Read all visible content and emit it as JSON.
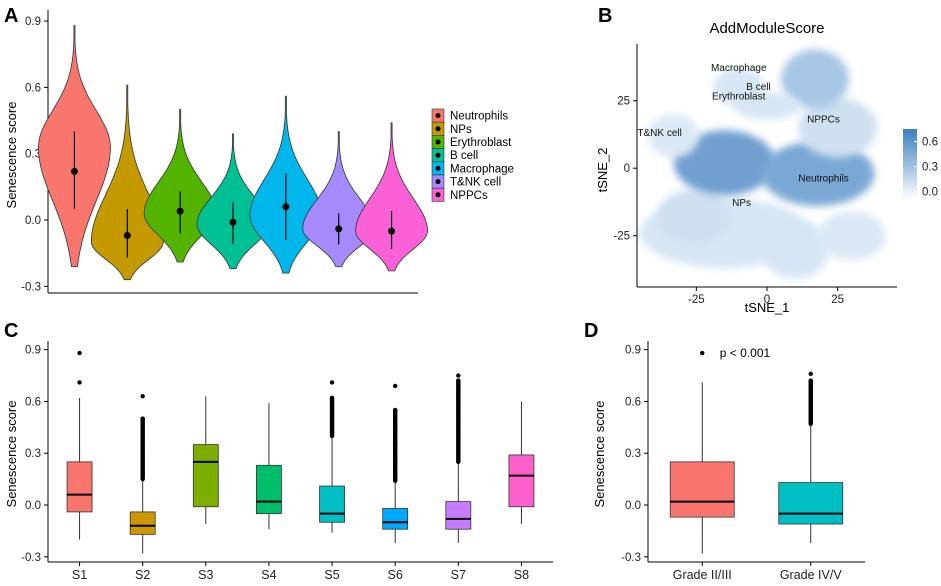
{
  "panels": {
    "A": {
      "letter": "A",
      "type": "violin",
      "ylabel": "Senescence score",
      "ylim": [
        -0.33,
        0.95
      ],
      "yticks": [
        -0.3,
        0.0,
        0.3,
        0.6,
        0.9
      ],
      "ytick_labels": [
        "-0.3",
        "0.0",
        "0.3",
        "0.6",
        "0.9"
      ],
      "legend_title": "",
      "legend_position": "right",
      "categories": [
        "Neutrophils",
        "NPs",
        "Erythroblast",
        "B cell",
        "Macrophage",
        "T&NK cell",
        "NPPCs"
      ],
      "colors": [
        "#F8766D",
        "#C49A00",
        "#53B400",
        "#00C094",
        "#00B6EB",
        "#A58AFF",
        "#FB61D7"
      ],
      "violins": [
        {
          "name": "Neutrophils",
          "min": -0.21,
          "max": 0.88,
          "mean": 0.22,
          "q1": 0.05,
          "q3": 0.4,
          "peak": 0.33
        },
        {
          "name": "NPs",
          "min": -0.27,
          "max": 0.61,
          "mean": -0.07,
          "q1": -0.17,
          "q3": 0.05,
          "peak": -0.1
        },
        {
          "name": "Erythroblast",
          "min": -0.19,
          "max": 0.5,
          "mean": 0.04,
          "q1": -0.06,
          "q3": 0.13,
          "peak": 0.03
        },
        {
          "name": "B cell",
          "min": -0.22,
          "max": 0.39,
          "mean": -0.01,
          "q1": -0.11,
          "q3": 0.08,
          "peak": -0.02
        },
        {
          "name": "Macrophage",
          "min": -0.24,
          "max": 0.56,
          "mean": 0.06,
          "q1": -0.09,
          "q3": 0.21,
          "peak": 0.02
        },
        {
          "name": "T&NK cell",
          "min": -0.21,
          "max": 0.4,
          "mean": -0.04,
          "q1": -0.11,
          "q3": 0.03,
          "peak": -0.04
        },
        {
          "name": "NPPCs",
          "min": -0.23,
          "max": 0.44,
          "mean": -0.05,
          "q1": -0.13,
          "q3": 0.04,
          "peak": -0.05
        }
      ]
    },
    "B": {
      "letter": "B",
      "type": "scatter",
      "title": "AddModuleScore",
      "xlabel": "tSNE_1",
      "ylabel": "tSNE_2",
      "xlim": [
        -46,
        46
      ],
      "ylim": [
        -44,
        46
      ],
      "xticks": [
        -25,
        0,
        25
      ],
      "xtick_labels": [
        "-25",
        "0",
        "25"
      ],
      "yticks": [
        -25,
        0,
        25
      ],
      "ytick_labels": [
        "-25",
        "0",
        "25"
      ],
      "colorbar": {
        "min": -0.1,
        "max": 0.75,
        "ticks": [
          0.0,
          0.3,
          0.6
        ],
        "tick_labels": [
          "0.0",
          "0.3",
          "0.6"
        ],
        "low_color": "#FFFFFF",
        "high_color": "#3A7FC0"
      },
      "cluster_labels": [
        {
          "text": "Macrophage",
          "x": -10,
          "y": 36
        },
        {
          "text": "B cell",
          "x": -3,
          "y": 29
        },
        {
          "text": "Erythroblast",
          "x": -10,
          "y": 25.5
        },
        {
          "text": "NPPCs",
          "x": 20,
          "y": 17
        },
        {
          "text": "T&NK cell",
          "x": -38,
          "y": 12
        },
        {
          "text": "Neutrophils",
          "x": 20,
          "y": -5
        },
        {
          "text": "NPs",
          "x": -9,
          "y": -14
        }
      ]
    },
    "C": {
      "letter": "C",
      "type": "box",
      "ylabel": "Senescence score",
      "ylim": [
        -0.33,
        0.95
      ],
      "yticks": [
        -0.3,
        0.0,
        0.3,
        0.6,
        0.9
      ],
      "ytick_labels": [
        "-0.3",
        "0.0",
        "0.3",
        "0.6",
        "0.9"
      ],
      "categories": [
        "S1",
        "S2",
        "S3",
        "S4",
        "S5",
        "S6",
        "S7",
        "S8"
      ],
      "colors": [
        "#F8766D",
        "#CD9600",
        "#7CAE00",
        "#00BE67",
        "#00BFC4",
        "#00A9FF",
        "#C77CFF",
        "#FF61CC"
      ],
      "boxes": [
        {
          "name": "S1",
          "min": -0.2,
          "q1": -0.04,
          "median": 0.06,
          "q3": 0.25,
          "max": 0.62,
          "outliers": [
            0.71,
            0.88
          ]
        },
        {
          "name": "S2",
          "min": -0.28,
          "q1": -0.17,
          "median": -0.12,
          "q3": -0.04,
          "max": 0.15,
          "outliers": [
            0.63,
            0.5,
            0.44,
            0.38,
            0.32,
            0.27,
            0.22,
            0.18
          ]
        },
        {
          "name": "S3",
          "min": -0.11,
          "q1": -0.01,
          "median": 0.25,
          "q3": 0.35,
          "max": 0.63,
          "outliers": []
        },
        {
          "name": "S4",
          "min": -0.14,
          "q1": -0.05,
          "median": 0.02,
          "q3": 0.23,
          "max": 0.59,
          "outliers": []
        },
        {
          "name": "S5",
          "min": -0.16,
          "q1": -0.1,
          "median": -0.05,
          "q3": 0.11,
          "max": 0.4,
          "outliers": [
            0.71,
            0.62,
            0.56,
            0.5,
            0.45,
            0.42
          ]
        },
        {
          "name": "S6",
          "min": -0.22,
          "q1": -0.14,
          "median": -0.1,
          "q3": -0.02,
          "max": 0.14,
          "outliers": [
            0.69,
            0.55,
            0.45,
            0.35,
            0.25,
            0.18
          ]
        },
        {
          "name": "S7",
          "min": -0.22,
          "q1": -0.14,
          "median": -0.08,
          "q3": 0.02,
          "max": 0.25,
          "outliers": [
            0.75,
            0.72,
            0.64,
            0.55,
            0.45,
            0.37,
            0.3
          ]
        },
        {
          "name": "S8",
          "min": -0.11,
          "q1": -0.01,
          "median": 0.17,
          "q3": 0.29,
          "max": 0.6,
          "outliers": []
        }
      ]
    },
    "D": {
      "letter": "D",
      "type": "box",
      "ylabel": "Senescence score",
      "annotation": "p < 0.001",
      "ylim": [
        -0.33,
        0.95
      ],
      "yticks": [
        -0.3,
        0.0,
        0.3,
        0.6,
        0.9
      ],
      "ytick_labels": [
        "-0.3",
        "0.0",
        "0.3",
        "0.6",
        "0.9"
      ],
      "categories": [
        "Grade II/III",
        "Grade IV/V"
      ],
      "colors": [
        "#F8766D",
        "#00BFC4"
      ],
      "boxes": [
        {
          "name": "Grade II/III",
          "min": -0.28,
          "q1": -0.07,
          "median": 0.02,
          "q3": 0.25,
          "max": 0.71,
          "outliers": [
            0.88
          ]
        },
        {
          "name": "Grade IV/V",
          "min": -0.22,
          "q1": -0.11,
          "median": -0.05,
          "q3": 0.13,
          "max": 0.47,
          "outliers": [
            0.76,
            0.72,
            0.66,
            0.6,
            0.55,
            0.5
          ]
        }
      ]
    }
  },
  "chart_data": [
    {
      "type": "violin",
      "title": "",
      "xlabel": "",
      "ylabel": "Senescence score",
      "categories": [
        "Neutrophils",
        "NPs",
        "Erythroblast",
        "B cell",
        "Macrophage",
        "T&NK cell",
        "NPPCs"
      ],
      "mean_values": [
        0.22,
        -0.07,
        0.04,
        -0.01,
        0.06,
        -0.04,
        -0.05
      ],
      "ylim": [
        -0.3,
        0.9
      ]
    },
    {
      "type": "scatter",
      "title": "AddModuleScore",
      "xlabel": "tSNE_1",
      "ylabel": "tSNE_2",
      "clusters": [
        "Macrophage",
        "B cell",
        "Erythroblast",
        "NPPCs",
        "T&NK cell",
        "Neutrophils",
        "NPs"
      ]
    },
    {
      "type": "box",
      "ylabel": "Senescence score",
      "categories": [
        "S1",
        "S2",
        "S3",
        "S4",
        "S5",
        "S6",
        "S7",
        "S8"
      ],
      "medians": [
        0.06,
        -0.12,
        0.25,
        0.02,
        -0.05,
        -0.1,
        -0.08,
        0.17
      ]
    },
    {
      "type": "box",
      "ylabel": "Senescence score",
      "categories": [
        "Grade II/III",
        "Grade IV/V"
      ],
      "medians": [
        0.02,
        -0.05
      ],
      "annotation": "p < 0.001"
    }
  ]
}
